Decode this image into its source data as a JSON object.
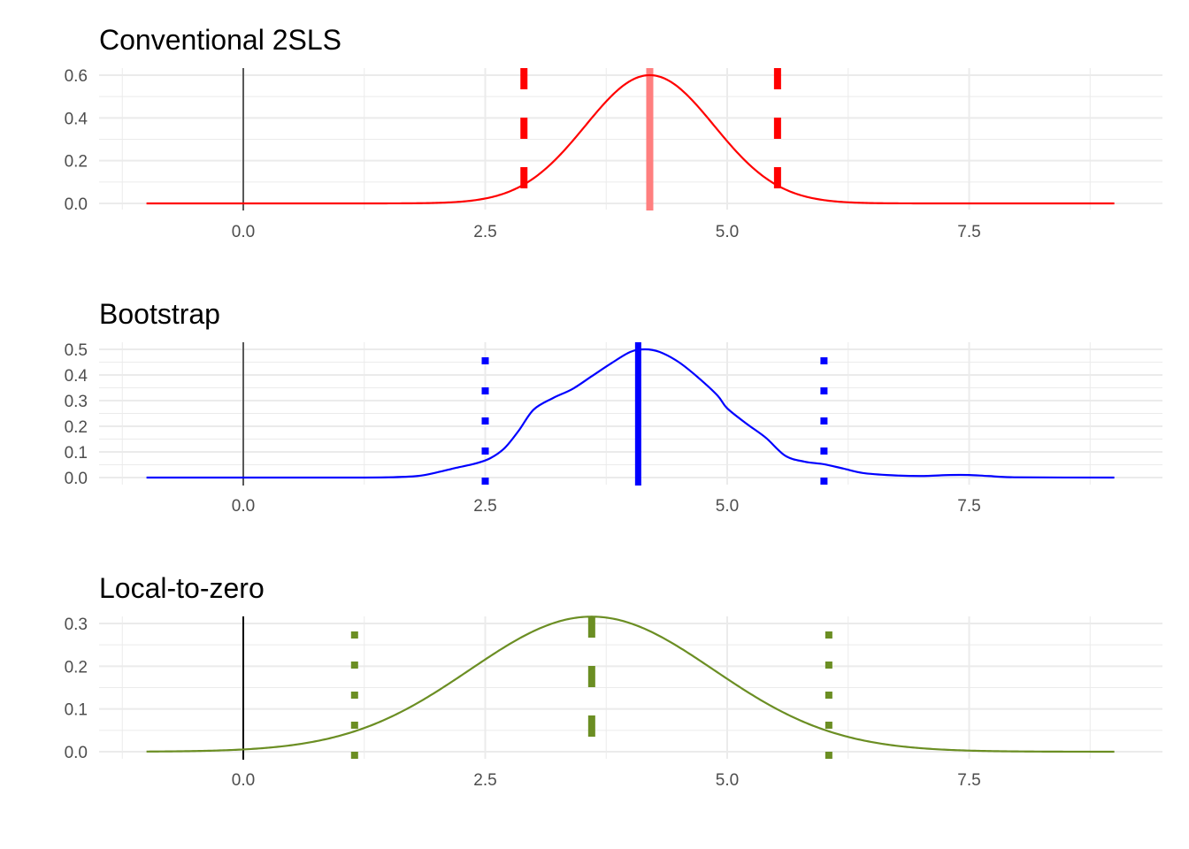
{
  "chart_data": [
    {
      "type": "line",
      "title": "Conventional 2SLS",
      "xlabel": "",
      "ylabel": "",
      "xlim": [
        -1,
        9
      ],
      "ylim": [
        0,
        0.6
      ],
      "x_ticks": [
        "0.0",
        "2.5",
        "5.0",
        "7.5"
      ],
      "y_ticks": [
        "0.0",
        "0.2",
        "0.4",
        "0.6"
      ],
      "grid": true,
      "color": "#ff0000",
      "density": {
        "kind": "normal",
        "mean": 4.2,
        "sd": 0.665,
        "peak": 0.6
      },
      "vlines": [
        {
          "x": 0,
          "style": "solid",
          "color": "#595959"
        },
        {
          "x": 4.2,
          "style": "solid-thick",
          "color": "#ff7f7f"
        },
        {
          "x": 2.9,
          "style": "dashed",
          "color": "#ff0000"
        },
        {
          "x": 5.52,
          "style": "dashed",
          "color": "#ff0000"
        }
      ]
    },
    {
      "type": "line",
      "title": "Bootstrap",
      "xlabel": "",
      "ylabel": "",
      "xlim": [
        -1,
        9
      ],
      "ylim": [
        0,
        0.5
      ],
      "x_ticks": [
        "0.0",
        "2.5",
        "5.0",
        "7.5"
      ],
      "y_ticks": [
        "0.0",
        "0.1",
        "0.2",
        "0.3",
        "0.4",
        "0.5"
      ],
      "grid": true,
      "color": "#0000ff",
      "density": {
        "kind": "points",
        "x": [
          -1.0,
          1.0,
          1.5,
          1.8,
          2.0,
          2.2,
          2.4,
          2.55,
          2.7,
          2.85,
          3.0,
          3.2,
          3.4,
          3.6,
          3.8,
          4.0,
          4.15,
          4.3,
          4.5,
          4.7,
          4.9,
          5.0,
          5.2,
          5.4,
          5.6,
          5.8,
          6.0,
          6.2,
          6.4,
          6.7,
          7.0,
          7.3,
          7.5,
          7.7,
          8.0,
          9.0
        ],
        "y": [
          0.0,
          0.0,
          0.001,
          0.006,
          0.02,
          0.038,
          0.055,
          0.075,
          0.115,
          0.185,
          0.265,
          0.31,
          0.345,
          0.395,
          0.445,
          0.49,
          0.5,
          0.49,
          0.45,
          0.39,
          0.32,
          0.27,
          0.21,
          0.155,
          0.085,
          0.062,
          0.052,
          0.035,
          0.018,
          0.009,
          0.006,
          0.01,
          0.01,
          0.006,
          0.001,
          0.0
        ]
      },
      "vlines": [
        {
          "x": 0,
          "style": "solid",
          "color": "#595959"
        },
        {
          "x": 4.08,
          "style": "solid-thick",
          "color": "#0000ff"
        },
        {
          "x": 2.5,
          "style": "dotted",
          "color": "#0000ff"
        },
        {
          "x": 6.0,
          "style": "dotted",
          "color": "#0000ff"
        }
      ]
    },
    {
      "type": "line",
      "title": "Local-to-zero",
      "xlabel": "",
      "ylabel": "",
      "xlim": [
        -1,
        9
      ],
      "ylim": [
        0,
        0.3
      ],
      "x_ticks": [
        "0.0",
        "2.5",
        "5.0",
        "7.5"
      ],
      "y_ticks": [
        "0.0",
        "0.1",
        "0.2",
        "0.3"
      ],
      "grid": true,
      "color": "#6b8e23",
      "density": {
        "kind": "normal",
        "mean": 3.6,
        "sd": 1.26,
        "peak": 0.316
      },
      "vlines": [
        {
          "x": 0,
          "style": "solid",
          "color": "#000000"
        },
        {
          "x": 3.6,
          "style": "dashed",
          "color": "#6b8e23"
        },
        {
          "x": 1.15,
          "style": "dotted",
          "color": "#6b8e23"
        },
        {
          "x": 6.05,
          "style": "dotted",
          "color": "#6b8e23"
        }
      ]
    }
  ]
}
